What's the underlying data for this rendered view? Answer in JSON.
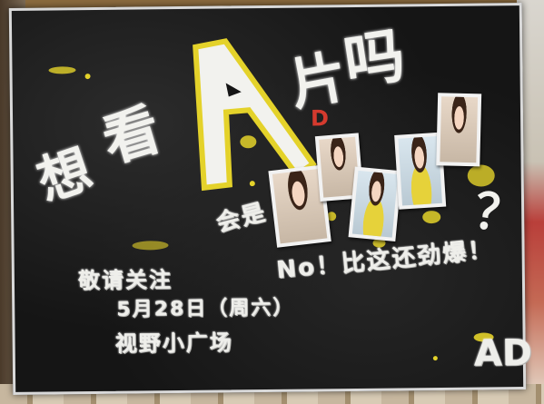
{
  "poster": {
    "headline_chars": [
      "想",
      "看",
      "A",
      "片",
      "吗"
    ],
    "will_it_be": "会是",
    "no_line": "No！比这还劲爆！",
    "respectfully": "敬请关注",
    "date_line": "5月28日（周六）",
    "location": "视野小广场",
    "question_mark": "？",
    "corner_mark": "AD",
    "a_decoration": "D"
  },
  "photos": [
    {
      "name": "photo-girl-1",
      "style": "white"
    },
    {
      "name": "photo-girl-2",
      "style": "white"
    },
    {
      "name": "photo-girl-3",
      "style": "yellow"
    },
    {
      "name": "photo-girl-4",
      "style": "yellow"
    },
    {
      "name": "photo-girl-5",
      "style": "white"
    }
  ],
  "colors": {
    "board": "#151515",
    "chalk": "#eeeeea",
    "paint_yellow": "#e4d22a",
    "accent_red": "#d43a2e"
  }
}
